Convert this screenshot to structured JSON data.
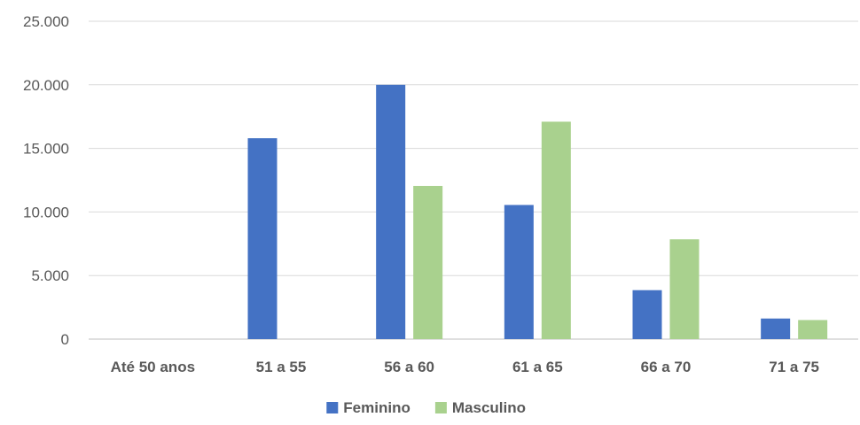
{
  "chart_data": {
    "type": "bar",
    "categories": [
      "Até 50 anos",
      "51 a 55",
      "56 a 60",
      "61 a 65",
      "66 a 70",
      "71 a 75"
    ],
    "y_tick_labels": [
      "0",
      "5.000",
      "10.000",
      "15.000",
      "20.000",
      "25.000"
    ],
    "y_ticks": [
      0,
      5000,
      10000,
      15000,
      20000,
      25000
    ],
    "ylim": [
      0,
      25000
    ],
    "grid": true,
    "legend_position": "bottom",
    "title": "",
    "xlabel": "",
    "ylabel": "",
    "series": [
      {
        "name": "Feminino",
        "color": "#4472c4",
        "values": [
          0,
          15800,
          20000,
          10550,
          3850,
          1620
        ]
      },
      {
        "name": "Masculino",
        "color": "#a9d18e",
        "values": [
          0,
          0,
          12050,
          17100,
          7850,
          1500
        ]
      }
    ]
  }
}
